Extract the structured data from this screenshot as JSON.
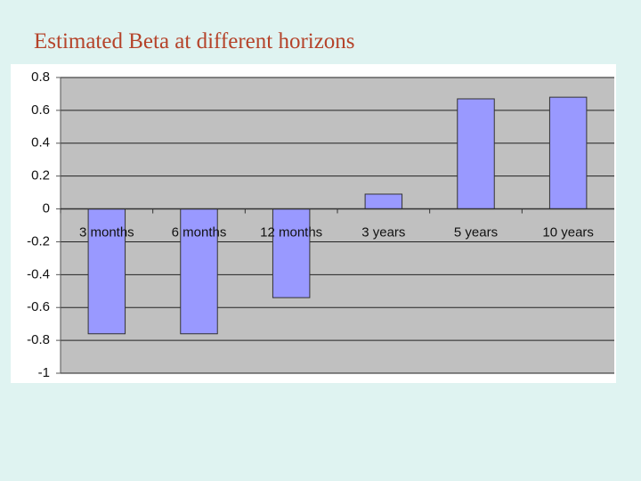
{
  "chart_data": {
    "type": "bar",
    "title": "Estimated Beta at different horizons",
    "categories": [
      "3 months",
      "6 months",
      "12 months",
      "3 years",
      "5 years",
      "10 years"
    ],
    "values": [
      -0.76,
      -0.76,
      -0.54,
      0.09,
      0.67,
      0.68
    ],
    "color": "#9999ff",
    "ylim": [
      -1,
      0.8
    ],
    "yticks": [
      -1,
      -0.8,
      -0.6,
      -0.4,
      -0.2,
      0,
      0.2,
      0.4,
      0.6,
      0.8
    ],
    "grid": true
  }
}
